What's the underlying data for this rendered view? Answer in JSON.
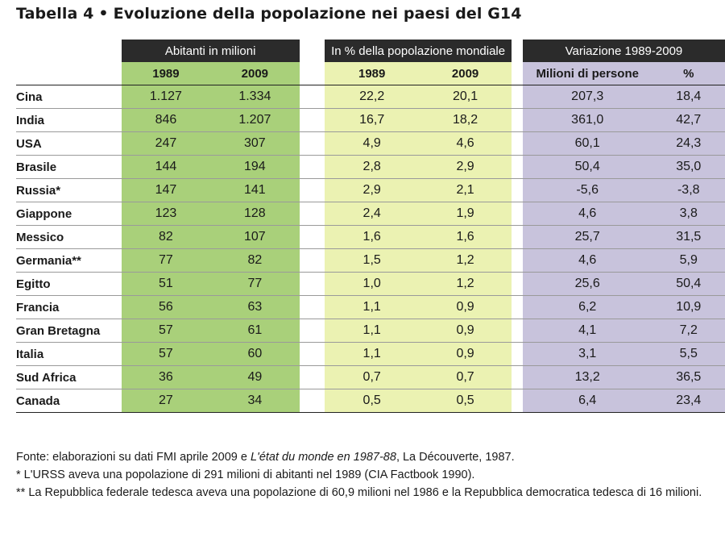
{
  "title": "Tabella 4 • Evoluzione della popolazione nei paesi del G14",
  "title_prefix": "Tabella 4",
  "title_bullet": "•",
  "title_text": "Evoluzione della popolazione nei paesi del G14",
  "groups": {
    "abitanti": "Abitanti in milioni",
    "percent": "In % della popolazione mondiale",
    "variazione": "Variazione 1989-2009"
  },
  "subheaders": {
    "ab_1989": "1989",
    "ab_2009": "2009",
    "pc_1989": "1989",
    "pc_2009": "2009",
    "var_milioni": "Milioni di persone",
    "var_pct": "%"
  },
  "rows": [
    {
      "country": "Cina",
      "ab1989": "1.127",
      "ab2009": "1.334",
      "pc1989": "22,2",
      "pc2009": "20,1",
      "varM": "207,3",
      "varP": "18,4"
    },
    {
      "country": "India",
      "ab1989": "846",
      "ab2009": "1.207",
      "pc1989": "16,7",
      "pc2009": "18,2",
      "varM": "361,0",
      "varP": "42,7"
    },
    {
      "country": "USA",
      "ab1989": "247",
      "ab2009": "307",
      "pc1989": "4,9",
      "pc2009": "4,6",
      "varM": "60,1",
      "varP": "24,3"
    },
    {
      "country": "Brasile",
      "ab1989": "144",
      "ab2009": "194",
      "pc1989": "2,8",
      "pc2009": "2,9",
      "varM": "50,4",
      "varP": "35,0"
    },
    {
      "country": "Russia*",
      "ab1989": "147",
      "ab2009": "141",
      "pc1989": "2,9",
      "pc2009": "2,1",
      "varM": "-5,6",
      "varP": "-3,8"
    },
    {
      "country": "Giappone",
      "ab1989": "123",
      "ab2009": "128",
      "pc1989": "2,4",
      "pc2009": "1,9",
      "varM": "4,6",
      "varP": "3,8"
    },
    {
      "country": "Messico",
      "ab1989": "82",
      "ab2009": "107",
      "pc1989": "1,6",
      "pc2009": "1,6",
      "varM": "25,7",
      "varP": "31,5"
    },
    {
      "country": "Germania**",
      "ab1989": "77",
      "ab2009": "82",
      "pc1989": "1,5",
      "pc2009": "1,2",
      "varM": "4,6",
      "varP": "5,9"
    },
    {
      "country": "Egitto",
      "ab1989": "51",
      "ab2009": "77",
      "pc1989": "1,0",
      "pc2009": "1,2",
      "varM": "25,6",
      "varP": "50,4"
    },
    {
      "country": "Francia",
      "ab1989": "56",
      "ab2009": "63",
      "pc1989": "1,1",
      "pc2009": "0,9",
      "varM": "6,2",
      "varP": "10,9"
    },
    {
      "country": "Gran Bretagna",
      "ab1989": "57",
      "ab2009": "61",
      "pc1989": "1,1",
      "pc2009": "0,9",
      "varM": "4,1",
      "varP": "7,2"
    },
    {
      "country": "Italia",
      "ab1989": "57",
      "ab2009": "60",
      "pc1989": "1,1",
      "pc2009": "0,9",
      "varM": "3,1",
      "varP": "5,5"
    },
    {
      "country": "Sud Africa",
      "ab1989": "36",
      "ab2009": "49",
      "pc1989": "0,7",
      "pc2009": "0,7",
      "varM": "13,2",
      "varP": "36,5"
    },
    {
      "country": "Canada",
      "ab1989": "27",
      "ab2009": "34",
      "pc1989": "0,5",
      "pc2009": "0,5",
      "varM": "6,4",
      "varP": "23,4"
    }
  ],
  "notes": {
    "source_pre": "Fonte: elaborazioni su dati FMI aprile 2009 e ",
    "source_italic": "L'état du monde en 1987-88",
    "source_post": ", La Découverte, 1987.",
    "note1": "* L'URSS aveva una popolazione di 291 milioni di abitanti nel 1989 (CIA Factbook 1990).",
    "note2": "** La Repubblica federale tedesca aveva una popolazione di 60,9 milioni nel 1986 e la Repubblica democratica tedesca di 16 milioni."
  },
  "colors": {
    "green": "#a9d07a",
    "yellow": "#ebf2b2",
    "purple": "#c8c3dc",
    "header_dark": "#2b2b2b"
  }
}
